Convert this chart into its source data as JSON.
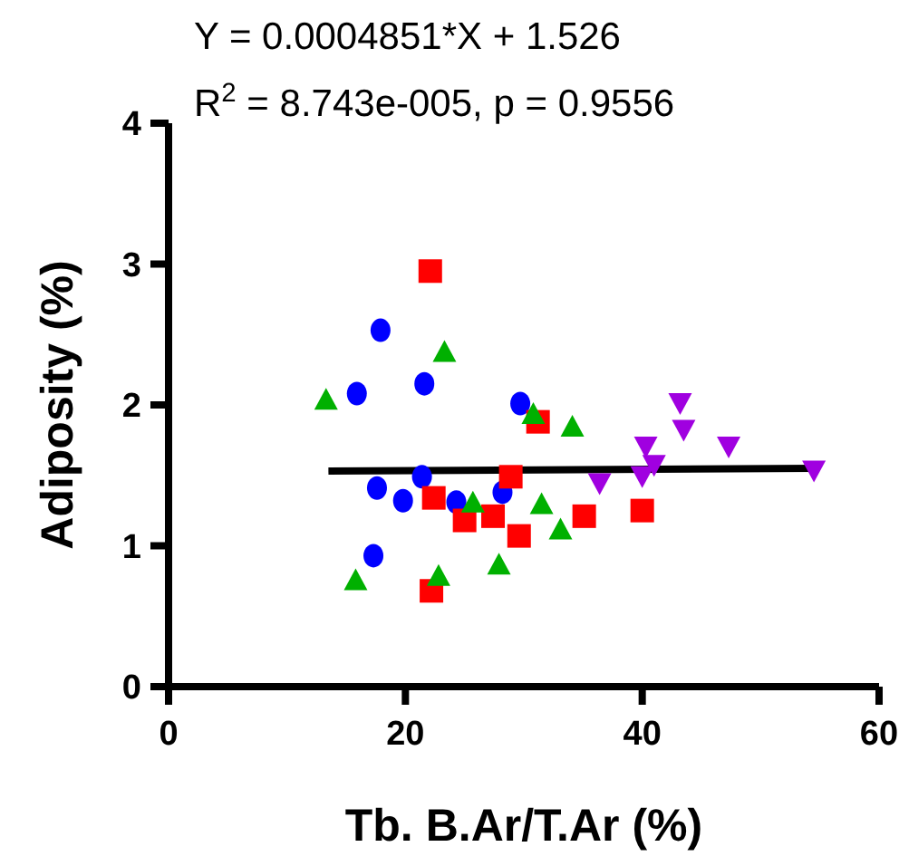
{
  "chart_data": {
    "type": "scatter",
    "xlabel": "Tb. B.Ar/T.Ar (%)",
    "ylabel": "Adiposity (%)",
    "annotations": [
      "Y = 0.0004851*X + 1.526",
      "R$^{2}$ = 8.743e-005, p = 0.9556"
    ],
    "xlim": [
      0,
      60
    ],
    "xticks": [
      0,
      20,
      40,
      60
    ],
    "ylim": [
      0,
      4
    ],
    "yticks": [
      0,
      1,
      2,
      3,
      4
    ],
    "grid": false,
    "series": [
      {
        "color": "#0000ff",
        "marker": "circle",
        "x": [
          17.9,
          15.9,
          21.6,
          29.7,
          17.6,
          19.8,
          21.4,
          24.3,
          28.2,
          17.3
        ],
        "values": [
          2.53,
          2.08,
          2.15,
          2.01,
          1.41,
          1.32,
          1.49,
          1.31,
          1.38,
          0.93
        ]
      },
      {
        "color": "#ff0000",
        "marker": "square",
        "x": [
          22.1,
          22.4,
          25.0,
          27.4,
          28.9,
          29.6,
          22.2,
          31.2,
          35.1,
          40.0
        ],
        "values": [
          2.95,
          1.34,
          1.18,
          1.21,
          1.49,
          1.07,
          0.68,
          1.88,
          1.21,
          1.25
        ]
      },
      {
        "color": "#00b000",
        "marker": "triangle",
        "x": [
          13.3,
          23.3,
          15.8,
          22.8,
          25.7,
          27.9,
          30.8,
          34.1,
          31.5,
          33.1
        ],
        "values": [
          2.03,
          2.37,
          0.75,
          0.78,
          1.3,
          0.86,
          1.93,
          1.84,
          1.29,
          1.11
        ]
      },
      {
        "color": "#a000e0",
        "marker": "triangle-down",
        "x": [
          43.2,
          43.5,
          40.3,
          47.3,
          41.0,
          40.0,
          36.4,
          54.5
        ],
        "values": [
          2.02,
          1.83,
          1.71,
          1.71,
          1.58,
          1.5,
          1.45,
          1.54
        ]
      },
      {
        "type": "line",
        "color": "#000000",
        "marker": "none",
        "line_style": "solid",
        "x": [
          13.5,
          54.5
        ],
        "values": [
          1.53,
          1.55
        ]
      }
    ]
  }
}
